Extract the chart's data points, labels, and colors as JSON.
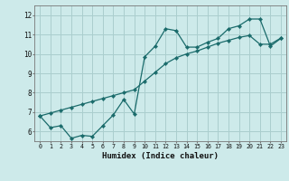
{
  "xlabel": "Humidex (Indice chaleur)",
  "background_color": "#cdeaea",
  "grid_color": "#aacece",
  "line_color": "#1a6b6b",
  "xlim": [
    -0.5,
    23.5
  ],
  "ylim": [
    5.5,
    12.5
  ],
  "xticks": [
    0,
    1,
    2,
    3,
    4,
    5,
    6,
    7,
    8,
    9,
    10,
    11,
    12,
    13,
    14,
    15,
    16,
    17,
    18,
    19,
    20,
    21,
    22,
    23
  ],
  "yticks": [
    6,
    7,
    8,
    9,
    10,
    11,
    12
  ],
  "line1_x": [
    0,
    1,
    2,
    3,
    4,
    5,
    6,
    7,
    8,
    9,
    10,
    11,
    12,
    13,
    14,
    15,
    16,
    17,
    18,
    19,
    20,
    21,
    22,
    23
  ],
  "line1_y": [
    6.8,
    6.2,
    6.3,
    5.65,
    5.8,
    5.75,
    6.3,
    6.85,
    7.65,
    6.9,
    9.85,
    10.4,
    11.3,
    11.2,
    10.35,
    10.35,
    10.6,
    10.8,
    11.3,
    11.45,
    11.8,
    11.8,
    10.4,
    10.8
  ],
  "line2_x": [
    0,
    1,
    2,
    3,
    4,
    5,
    6,
    7,
    8,
    9,
    10,
    11,
    12,
    13,
    14,
    15,
    16,
    17,
    18,
    19,
    20,
    21,
    22,
    23
  ],
  "line2_y": [
    6.8,
    6.95,
    7.1,
    7.25,
    7.4,
    7.55,
    7.7,
    7.85,
    8.0,
    8.15,
    8.6,
    9.05,
    9.5,
    9.8,
    10.0,
    10.15,
    10.35,
    10.55,
    10.7,
    10.85,
    10.95,
    10.5,
    10.5,
    10.82
  ]
}
